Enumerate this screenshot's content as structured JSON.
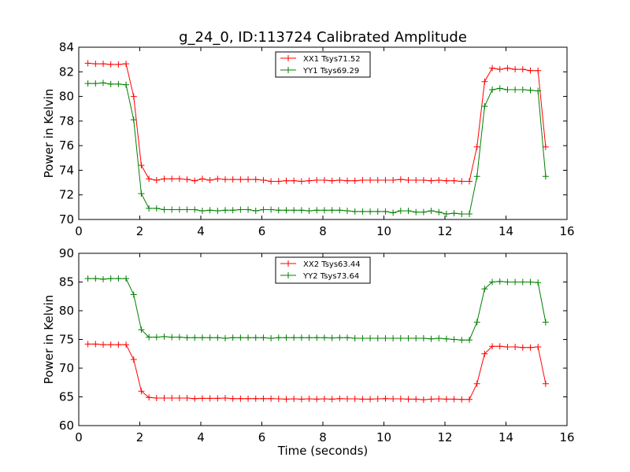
{
  "figure": {
    "title": "g_24_0, ID:113724 Calibrated Amplitude",
    "xlabel": "Time (seconds)"
  },
  "chart_data": [
    {
      "type": "line",
      "ylabel": "Power in Kelvin",
      "xlim": [
        0,
        16
      ],
      "ylim": [
        70,
        84
      ],
      "xticks": [
        "0",
        "2",
        "4",
        "6",
        "8",
        "10",
        "12",
        "14",
        "16"
      ],
      "yticks": [
        "70",
        "72",
        "74",
        "76",
        "78",
        "80",
        "82",
        "84"
      ],
      "legend_position": "top-center",
      "x": [
        0.3,
        0.55,
        0.8,
        1.05,
        1.3,
        1.55,
        1.8,
        2.05,
        2.3,
        2.55,
        2.8,
        3.05,
        3.3,
        3.55,
        3.8,
        4.05,
        4.3,
        4.55,
        4.8,
        5.05,
        5.3,
        5.55,
        5.8,
        6.05,
        6.3,
        6.55,
        6.8,
        7.05,
        7.3,
        7.55,
        7.8,
        8.05,
        8.3,
        8.55,
        8.8,
        9.05,
        9.3,
        9.55,
        9.8,
        10.05,
        10.3,
        10.55,
        10.8,
        11.05,
        11.3,
        11.55,
        11.8,
        12.05,
        12.3,
        12.55,
        12.8,
        13.05,
        13.3,
        13.55,
        13.8,
        14.05,
        14.3,
        14.55,
        14.8,
        15.05,
        15.3
      ],
      "series": [
        {
          "name": "XX1 Tsys71.52",
          "color": "#ff0000",
          "values": [
            82.7,
            82.65,
            82.65,
            82.6,
            82.6,
            82.65,
            80.0,
            74.4,
            73.3,
            73.2,
            73.3,
            73.3,
            73.3,
            73.25,
            73.15,
            73.3,
            73.2,
            73.3,
            73.25,
            73.25,
            73.25,
            73.25,
            73.25,
            73.2,
            73.1,
            73.1,
            73.15,
            73.15,
            73.1,
            73.15,
            73.2,
            73.2,
            73.15,
            73.2,
            73.15,
            73.15,
            73.2,
            73.2,
            73.2,
            73.2,
            73.2,
            73.25,
            73.2,
            73.2,
            73.2,
            73.15,
            73.2,
            73.15,
            73.15,
            73.1,
            73.1,
            75.9,
            81.2,
            82.3,
            82.2,
            82.3,
            82.2,
            82.2,
            82.1,
            82.1,
            75.9
          ]
        },
        {
          "name": "YY1 Tsys69.29",
          "color": "#008000",
          "values": [
            81.05,
            81.05,
            81.1,
            81.0,
            81.0,
            80.95,
            78.1,
            72.1,
            70.9,
            70.9,
            70.8,
            70.8,
            70.8,
            70.8,
            70.8,
            70.7,
            70.75,
            70.7,
            70.75,
            70.75,
            70.8,
            70.8,
            70.7,
            70.8,
            70.8,
            70.75,
            70.75,
            70.75,
            70.75,
            70.7,
            70.75,
            70.75,
            70.75,
            70.75,
            70.7,
            70.65,
            70.65,
            70.65,
            70.65,
            70.65,
            70.55,
            70.7,
            70.7,
            70.6,
            70.6,
            70.7,
            70.6,
            70.45,
            70.5,
            70.45,
            70.45,
            73.5,
            79.2,
            80.55,
            80.65,
            80.55,
            80.55,
            80.55,
            80.5,
            80.45,
            73.5
          ]
        }
      ]
    },
    {
      "type": "line",
      "ylabel": "Power in Kelvin",
      "xlabel": "Time (seconds)",
      "xlim": [
        0,
        16
      ],
      "ylim": [
        60,
        90
      ],
      "xticks": [
        "0",
        "2",
        "4",
        "6",
        "8",
        "10",
        "12",
        "14",
        "16"
      ],
      "yticks": [
        "60",
        "65",
        "70",
        "75",
        "80",
        "85",
        "90"
      ],
      "legend_position": "top-center",
      "x": [
        0.3,
        0.55,
        0.8,
        1.05,
        1.3,
        1.55,
        1.8,
        2.05,
        2.3,
        2.55,
        2.8,
        3.05,
        3.3,
        3.55,
        3.8,
        4.05,
        4.3,
        4.55,
        4.8,
        5.05,
        5.3,
        5.55,
        5.8,
        6.05,
        6.3,
        6.55,
        6.8,
        7.05,
        7.3,
        7.55,
        7.8,
        8.05,
        8.3,
        8.55,
        8.8,
        9.05,
        9.3,
        9.55,
        9.8,
        10.05,
        10.3,
        10.55,
        10.8,
        11.05,
        11.3,
        11.55,
        11.8,
        12.05,
        12.3,
        12.55,
        12.8,
        13.05,
        13.3,
        13.55,
        13.8,
        14.05,
        14.3,
        14.55,
        14.8,
        15.05,
        15.3
      ],
      "series": [
        {
          "name": "XX2 Tsys63.44",
          "color": "#ff0000",
          "values": [
            74.2,
            74.2,
            74.1,
            74.1,
            74.1,
            74.1,
            71.5,
            66.0,
            64.9,
            64.8,
            64.8,
            64.8,
            64.8,
            64.8,
            64.7,
            64.75,
            64.75,
            64.75,
            64.8,
            64.7,
            64.7,
            64.7,
            64.7,
            64.7,
            64.7,
            64.65,
            64.6,
            64.65,
            64.6,
            64.65,
            64.6,
            64.65,
            64.6,
            64.7,
            64.65,
            64.65,
            64.6,
            64.6,
            64.65,
            64.7,
            64.65,
            64.65,
            64.6,
            64.6,
            64.5,
            64.6,
            64.65,
            64.6,
            64.6,
            64.55,
            64.55,
            67.3,
            72.5,
            73.8,
            73.8,
            73.7,
            73.7,
            73.6,
            73.6,
            73.7,
            67.3
          ]
        },
        {
          "name": "YY2 Tsys73.64",
          "color": "#008000",
          "values": [
            85.6,
            85.6,
            85.5,
            85.6,
            85.6,
            85.6,
            82.8,
            76.7,
            75.4,
            75.4,
            75.5,
            75.4,
            75.4,
            75.3,
            75.3,
            75.3,
            75.3,
            75.3,
            75.2,
            75.3,
            75.3,
            75.3,
            75.3,
            75.3,
            75.2,
            75.3,
            75.3,
            75.3,
            75.3,
            75.3,
            75.3,
            75.3,
            75.25,
            75.3,
            75.3,
            75.2,
            75.2,
            75.2,
            75.2,
            75.2,
            75.2,
            75.2,
            75.2,
            75.2,
            75.2,
            75.1,
            75.2,
            75.1,
            75.0,
            74.9,
            74.9,
            78.0,
            83.8,
            85.0,
            85.1,
            85.0,
            85.0,
            85.0,
            85.0,
            84.9,
            78.0
          ]
        }
      ]
    }
  ]
}
